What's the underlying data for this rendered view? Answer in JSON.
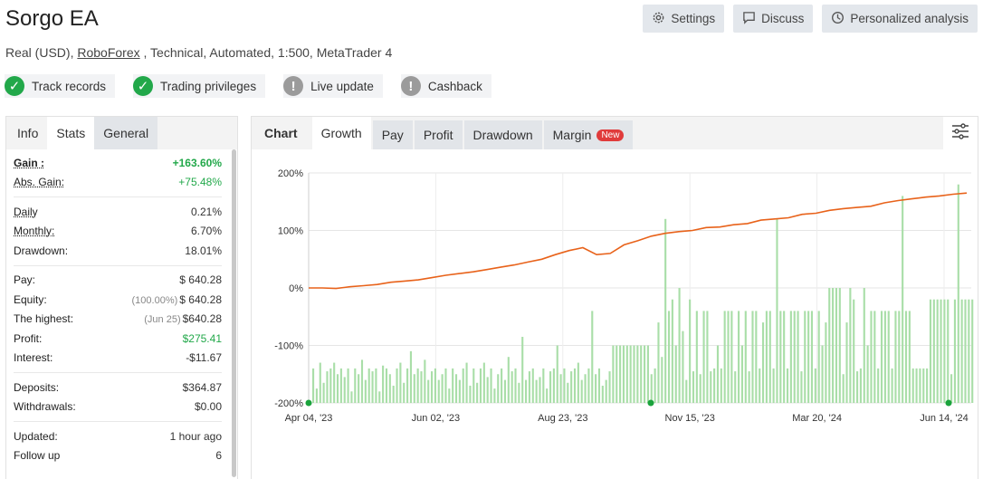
{
  "header": {
    "title": "Sorgo EA",
    "subtitle_prefix": "Real (USD),",
    "broker": "RoboForex",
    "subtitle_suffix": " , Technical, Automated, 1:500, MetaTrader 4"
  },
  "top_buttons": {
    "settings": "Settings",
    "discuss": "Discuss",
    "analysis": "Personalized analysis"
  },
  "badges": [
    {
      "label": "Track records",
      "status": "ok"
    },
    {
      "label": "Trading privileges",
      "status": "ok"
    },
    {
      "label": "Live update",
      "status": "warn"
    },
    {
      "label": "Cashback",
      "status": "warn"
    }
  ],
  "left_tabs": {
    "info": "Info",
    "stats": "Stats",
    "general": "General"
  },
  "stats": {
    "gain_label": "Gain :",
    "gain": "+163.60%",
    "abs_gain_label": "Abs. Gain:",
    "abs_gain": "+75.48%",
    "daily_label": "Daily",
    "daily": "0.21%",
    "monthly_label": "Monthly:",
    "monthly": "6.70%",
    "drawdown_label": "Drawdown:",
    "drawdown": "18.01%",
    "pay_label": "Pay:",
    "pay": "$ 640.28",
    "equity_label": "Equity:",
    "equity_note": "(100.00%)",
    "equity": "$ 640.28",
    "highest_label": "The highest:",
    "highest_note": "(Jun 25)",
    "highest": "$640.28",
    "profit_label": "Profit:",
    "profit": "$275.41",
    "interest_label": "Interest:",
    "interest": "-$11.67",
    "deposits_label": "Deposits:",
    "deposits": "$364.87",
    "withdrawals_label": "Withdrawals:",
    "withdrawals": "$0.00",
    "updated_label": "Updated:",
    "updated": "1 hour ago",
    "follow_label": "Follow up",
    "follow": "6"
  },
  "chart_tabs": {
    "chart": "Chart",
    "growth": "Growth",
    "pay": "Pay",
    "profit": "Profit",
    "drawdown": "Drawdown",
    "margin": "Margin",
    "new_badge": "New"
  },
  "colors": {
    "line": "#e8621a",
    "bars": "#a9dea8",
    "dots": "#1aa33c"
  },
  "chart_data": {
    "type": "line",
    "ylim": [
      -200,
      200
    ],
    "yticks": [
      "200%",
      "100%",
      "0%",
      "-100%",
      "-200%"
    ],
    "xticks": [
      "Apr 04, '23",
      "Jun 02, '23",
      "Aug 23, '23",
      "Nov 15, '23",
      "Mar 20, '24",
      "Jun 14, '24"
    ],
    "series": [
      {
        "values": [
          0,
          0,
          -1,
          2,
          4,
          6,
          10,
          12,
          14,
          18,
          22,
          25,
          28,
          32,
          36,
          40,
          45,
          50,
          58,
          65,
          70,
          58,
          60,
          75,
          82,
          90,
          95,
          98,
          100,
          105,
          106,
          110,
          112,
          118,
          120,
          122,
          128,
          130,
          135,
          138,
          140,
          142,
          148,
          152,
          155,
          158,
          160,
          163,
          165
        ]
      },
      {
        "values": [
          -140,
          -175,
          -130,
          -165,
          -145,
          -140,
          -130,
          -150,
          -140,
          -155,
          -140,
          -180,
          -140,
          -150,
          -125,
          -160,
          -140,
          -145,
          -140,
          -180,
          -135,
          -140,
          -150,
          -170,
          -140,
          -130,
          -165,
          -140,
          -110,
          -150,
          -140,
          -145,
          -125,
          -160,
          -145,
          -140,
          -160,
          -150,
          -140,
          -175,
          -140,
          -150,
          -160,
          -140,
          -130,
          -170,
          -140,
          -165,
          -140,
          -130,
          -155,
          -140,
          -175,
          -150,
          -140,
          -160,
          -120,
          -145,
          -140,
          -165,
          -85,
          -160,
          -145,
          -140,
          -160,
          -155,
          -140,
          -175,
          -145,
          -140,
          -100,
          -150,
          -140,
          -165,
          -145,
          -140,
          -130,
          -160,
          -150,
          -140,
          -40,
          -150,
          -140,
          -170,
          -160,
          -145,
          -100,
          -100,
          -100,
          -100,
          -100,
          -100,
          -100,
          -100,
          -100,
          -100,
          -100,
          -150,
          -140,
          -60,
          -120,
          120,
          -40,
          -20,
          -100,
          0,
          -75,
          -160,
          -20,
          -145,
          -40,
          -150,
          -40,
          -40,
          -145,
          -140,
          -100,
          -140,
          -40,
          -40,
          -40,
          -145,
          -40,
          -100,
          -40,
          -145,
          -40,
          -40,
          -140,
          -60,
          -40,
          -40,
          -140,
          120,
          -40,
          -40,
          -140,
          -40,
          -40,
          -40,
          -145,
          -40,
          -40,
          -40,
          -140,
          -40,
          -100,
          -60,
          0,
          0,
          0,
          0,
          -150,
          -60,
          0,
          -20,
          -145,
          -140,
          0,
          -100,
          -40,
          -40,
          -140,
          -40,
          -40,
          -40,
          -140,
          -40,
          -40,
          160,
          -40,
          -40,
          -140,
          -140,
          -140,
          -140,
          -140,
          -20,
          -20,
          -20,
          -20,
          -20,
          -20,
          -150,
          -20,
          180,
          -20,
          -20,
          -20,
          -20
        ]
      }
    ]
  }
}
